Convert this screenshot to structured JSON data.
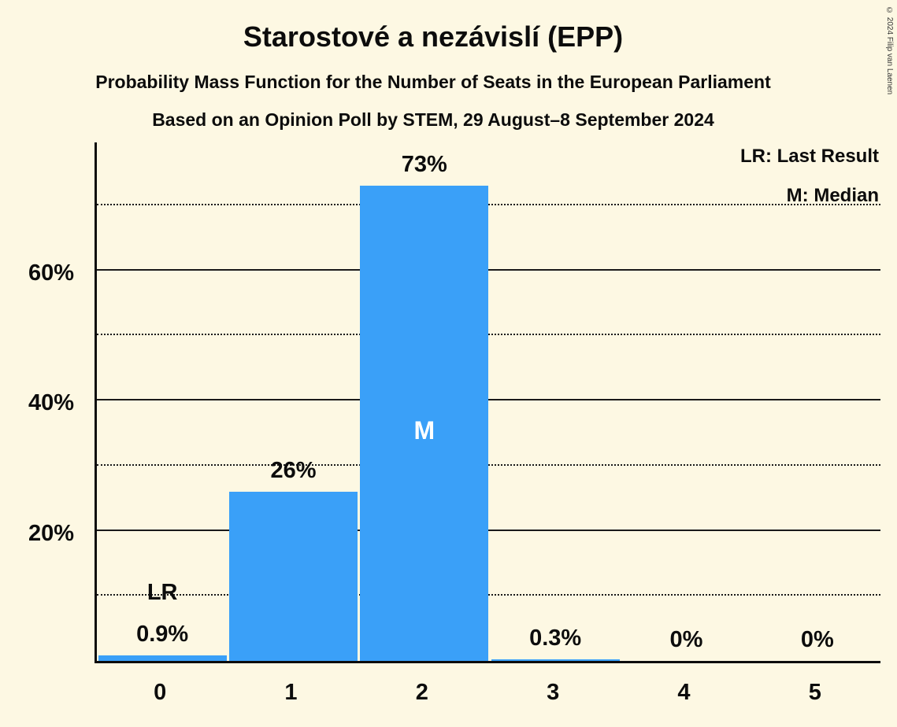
{
  "header": {
    "title": "Starostové a nezávislí (EPP)",
    "subtitle1": "Probability Mass Function for the Number of Seats in the European Parliament",
    "subtitle2": "Based on an Opinion Poll by STEM, 29 August–8 September 2024"
  },
  "legend": {
    "lr": "LR: Last Result",
    "m": "M: Median"
  },
  "copyright": "© 2024 Filip van Laenen",
  "colors": {
    "background": "#fdf8e3",
    "bar": "#3aa0f8",
    "text": "#0c0c0c",
    "median_label": "#ffffff"
  },
  "chart_data": {
    "type": "bar",
    "title": "Starostové a nezávislí (EPP)",
    "categories": [
      "0",
      "1",
      "2",
      "3",
      "4",
      "5"
    ],
    "values": [
      0.9,
      26,
      73,
      0.3,
      0,
      0
    ],
    "value_labels": [
      "0.9%",
      "26%",
      "73%",
      "0.3%",
      "0%",
      "0%"
    ],
    "ylim": [
      0,
      80
    ],
    "yticks_solid": [
      20,
      40,
      60
    ],
    "ytick_labels": [
      "20%",
      "40%",
      "60%"
    ],
    "yticks_dotted": [
      10,
      30,
      50,
      70
    ],
    "grid": true,
    "legend_position": "top-right",
    "annotations": [
      {
        "bar_index": 0,
        "text": "LR",
        "meaning": "Last Result"
      },
      {
        "bar_index": 2,
        "text": "M",
        "meaning": "Median"
      }
    ]
  }
}
